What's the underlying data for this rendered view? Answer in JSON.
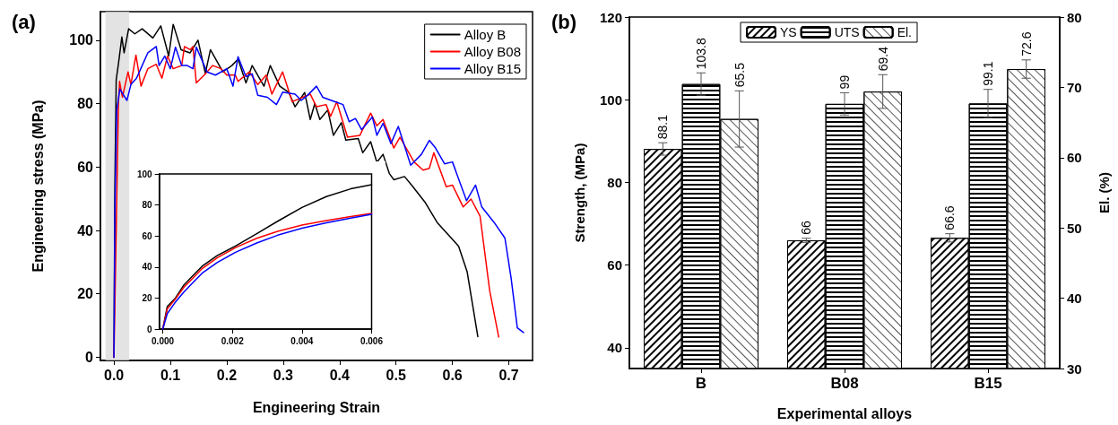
{
  "chart_data": [
    {
      "type": "line",
      "title": "(a)",
      "xlabel": "Engineering Strain",
      "ylabel": "Engineering stress (MPa)",
      "xlim": [
        -0.024,
        0.742
      ],
      "ylim": [
        -1,
        109
      ],
      "xticks": [
        {
          "value": 0,
          "label": "0.0"
        },
        0.1,
        0.2,
        0.3,
        0.4,
        0.5,
        0.6,
        0.7
      ],
      "yticks": [
        0,
        20,
        40,
        60,
        80,
        100
      ],
      "grid": false,
      "legend": "top right",
      "marker": "none",
      "line_style": "solid",
      "bands": [
        {
          "axis": "x",
          "from": -0.015,
          "to": 0.027,
          "color": "#dcdcdc"
        }
      ],
      "series": [
        {
          "name": "Alloy B",
          "color": "#000000",
          "x": [
            0,
            0.0016,
            0.004,
            0.009,
            0.014,
            0.018,
            0.026,
            0.037,
            0.05,
            0.069,
            0.083,
            0.097,
            0.105,
            0.119,
            0.135,
            0.149,
            0.162,
            0.171,
            0.193,
            0.209,
            0.22,
            0.234,
            0.245,
            0.266,
            0.277,
            0.294,
            0.31,
            0.321,
            0.338,
            0.348,
            0.356,
            0.365,
            0.379,
            0.389,
            0.403,
            0.411,
            0.433,
            0.441,
            0.455,
            0.466,
            0.477,
            0.488,
            0.496,
            0.515,
            0.529,
            0.551,
            0.573,
            0.611,
            0.626,
            0.645
          ],
          "values": [
            0,
            54,
            87.5,
            94,
            101,
            96,
            103.6,
            102,
            103.6,
            100.7,
            104.5,
            95,
            105,
            97,
            96,
            100,
            89.5,
            97,
            90,
            92,
            94,
            86.5,
            92,
            85.5,
            92,
            85.5,
            83.5,
            79,
            83.5,
            75,
            80,
            75,
            78,
            70,
            74,
            68.5,
            69,
            64.5,
            68,
            61.5,
            64,
            58,
            56,
            57,
            54,
            49,
            42.5,
            35,
            27,
            6.5
          ]
        },
        {
          "name": "Alloy B08",
          "color": "#ff0000",
          "x": [
            0,
            0.008,
            0.01,
            0.015,
            0.025,
            0.03,
            0.039,
            0.048,
            0.06,
            0.075,
            0.085,
            0.095,
            0.105,
            0.12,
            0.125,
            0.135,
            0.14,
            0.146,
            0.16,
            0.175,
            0.19,
            0.2,
            0.215,
            0.22,
            0.24,
            0.255,
            0.27,
            0.28,
            0.299,
            0.316,
            0.348,
            0.359,
            0.376,
            0.384,
            0.395,
            0.414,
            0.436,
            0.455,
            0.466,
            0.477,
            0.496,
            0.507,
            0.532,
            0.548,
            0.559,
            0.567,
            0.589,
            0.6,
            0.619,
            0.633,
            0.649,
            0.666,
            0.682
          ],
          "values": [
            0,
            80,
            87,
            82,
            90,
            86,
            95.3,
            85.5,
            91,
            92.4,
            88,
            95,
            91,
            92,
            98,
            97,
            98,
            86.5,
            89,
            92,
            91,
            89,
            89,
            87,
            90,
            86,
            89,
            83,
            90,
            80.6,
            83,
            79,
            79.7,
            76,
            80.6,
            69.4,
            70,
            77,
            73,
            75,
            66,
            69.4,
            61.6,
            59,
            59.6,
            64.5,
            53.8,
            54.3,
            47.4,
            49.9,
            44.5,
            21,
            6.4
          ]
        },
        {
          "name": "Alloy B15",
          "color": "#0000ff",
          "x": [
            0,
            0.0016,
            0.005,
            0.0104,
            0.023,
            0.03,
            0.04,
            0.05,
            0.06,
            0.075,
            0.08,
            0.09,
            0.1,
            0.109,
            0.12,
            0.13,
            0.14,
            0.146,
            0.165,
            0.18,
            0.2,
            0.211,
            0.22,
            0.234,
            0.245,
            0.255,
            0.272,
            0.288,
            0.299,
            0.321,
            0.332,
            0.343,
            0.359,
            0.37,
            0.392,
            0.406,
            0.417,
            0.428,
            0.439,
            0.458,
            0.466,
            0.477,
            0.491,
            0.504,
            0.526,
            0.545,
            0.559,
            0.57,
            0.586,
            0.6,
            0.625,
            0.641,
            0.652,
            0.674,
            0.693,
            0.704,
            0.715,
            0.726
          ],
          "values": [
            0,
            45,
            78,
            84.6,
            81,
            86,
            88,
            92,
            96,
            98,
            92,
            95,
            91,
            97.8,
            92,
            92,
            91,
            97.8,
            90,
            89,
            91,
            85.5,
            94.8,
            88.5,
            89.4,
            82.6,
            82,
            79.7,
            83.6,
            83,
            81,
            82.6,
            85.5,
            82,
            80.6,
            79.7,
            74.3,
            75.3,
            71.8,
            75.8,
            70,
            73.8,
            67.4,
            72.8,
            60.6,
            64,
            68.4,
            66,
            61,
            61.6,
            49.4,
            54.3,
            47.4,
            42.5,
            37.6,
            25,
            9.3,
            7.8
          ]
        }
      ]
    },
    {
      "type": "line",
      "xlim": [
        -0.0001,
        0.006
      ],
      "ylim": [
        0,
        100
      ],
      "xticks": [
        {
          "value": 0,
          "label": "0.000"
        },
        {
          "value": 0.002,
          "label": "0.002"
        },
        {
          "value": 0.004,
          "label": "0.004"
        },
        {
          "value": 0.006,
          "label": "0.006"
        }
      ],
      "yticks": [
        0,
        20,
        40,
        60,
        80,
        100
      ],
      "grid": false,
      "marker": "none",
      "x": [
        0,
        0.00013,
        0.00035,
        0.00061,
        0.00087,
        0.00113,
        0.00157,
        0.00209,
        0.0027,
        0.0033,
        0.004,
        0.0047,
        0.0054,
        0.006
      ],
      "series": [
        {
          "color": "#000000",
          "values": [
            0,
            14.6,
            19.6,
            28.5,
            34.5,
            40.5,
            47.5,
            53.5,
            61.5,
            69.5,
            78.4,
            85.4,
            90.4,
            93
          ]
        },
        {
          "color": "#ff0000",
          "values": [
            0,
            13,
            19,
            27,
            33,
            39,
            46,
            52.5,
            58.5,
            63,
            67,
            70,
            72.5,
            74.5
          ]
        },
        {
          "color": "#0000ff",
          "values": [
            0,
            10,
            17,
            24,
            30,
            36,
            43,
            49.5,
            55.5,
            60.5,
            65,
            68.5,
            71.5,
            74
          ]
        }
      ]
    },
    {
      "type": "bar",
      "title": "(b)",
      "xlabel": "Experimental alloys",
      "ylabel": "Strength, (MPa)",
      "y2label": "El. (%)",
      "categories": [
        "B",
        "B08",
        "B15"
      ],
      "ylim": [
        35,
        120
      ],
      "yticks": [
        40,
        60,
        80,
        100,
        120
      ],
      "y2lim": [
        30,
        80
      ],
      "y2ticks": [
        30,
        40,
        50,
        60,
        70,
        80
      ],
      "grid": false,
      "legend": "top",
      "data_labels": true,
      "series": [
        {
          "name": "YS",
          "color": "#ffffff",
          "values": [
            88.1,
            66,
            66.6
          ],
          "errors": [
            1.5,
            0.5,
            1
          ]
        },
        {
          "name": "UTS",
          "color": "#ffffff",
          "values": [
            103.8,
            99,
            99.1
          ],
          "errors": [
            2.7,
            2.7,
            3.4
          ]
        },
        {
          "name": "El.",
          "color": "#ffffff",
          "axis": "y2",
          "values": [
            65.5,
            69.4,
            72.6
          ],
          "errors": [
            4,
            2.4,
            1.3
          ]
        }
      ]
    }
  ]
}
